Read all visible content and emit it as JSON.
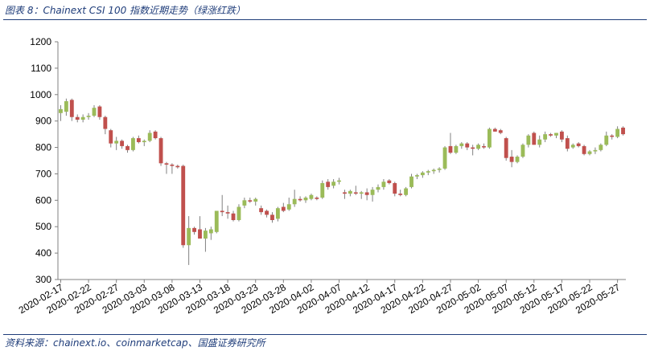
{
  "header": {
    "title": "图表 8：Chainext CSI 100 指数近期走势（绿涨红跌）"
  },
  "footer": {
    "source": "资料来源：chainext.io、coinmarketcap、国盛证券研究所"
  },
  "colors": {
    "up": "#9bbb59",
    "down": "#c0504d",
    "accent": "#1f3d7a",
    "wick": "#808080"
  },
  "chart_data": {
    "type": "candlestick",
    "ylim": [
      300,
      1200
    ],
    "yticks": [
      300,
      400,
      500,
      600,
      700,
      800,
      900,
      1000,
      1100,
      1200
    ],
    "xtick_labels": [
      "2020-02-17",
      "2020-02-22",
      "2020-02-27",
      "2020-03-03",
      "2020-03-08",
      "2020-03-13",
      "2020-03-18",
      "2020-03-23",
      "2020-03-28",
      "2020-04-02",
      "2020-04-07",
      "2020-04-12",
      "2020-04-17",
      "2020-04-22",
      "2020-04-27",
      "2020-05-02",
      "2020-05-07",
      "2020-05-12",
      "2020-05-17",
      "2020-05-22",
      "2020-05-27"
    ],
    "xtick_every": 5,
    "candles": [
      {
        "o": 930,
        "h": 960,
        "l": 900,
        "c": 945
      },
      {
        "o": 935,
        "h": 985,
        "l": 920,
        "c": 975
      },
      {
        "o": 980,
        "h": 985,
        "l": 900,
        "c": 915
      },
      {
        "o": 915,
        "h": 925,
        "l": 895,
        "c": 905
      },
      {
        "o": 905,
        "h": 925,
        "l": 895,
        "c": 915
      },
      {
        "o": 915,
        "h": 930,
        "l": 905,
        "c": 920
      },
      {
        "o": 920,
        "h": 960,
        "l": 915,
        "c": 950
      },
      {
        "o": 955,
        "h": 960,
        "l": 905,
        "c": 915
      },
      {
        "o": 915,
        "h": 920,
        "l": 850,
        "c": 870
      },
      {
        "o": 865,
        "h": 870,
        "l": 800,
        "c": 815
      },
      {
        "o": 815,
        "h": 840,
        "l": 790,
        "c": 825
      },
      {
        "o": 825,
        "h": 830,
        "l": 795,
        "c": 805
      },
      {
        "o": 805,
        "h": 810,
        "l": 780,
        "c": 790
      },
      {
        "o": 790,
        "h": 840,
        "l": 785,
        "c": 835
      },
      {
        "o": 835,
        "h": 845,
        "l": 815,
        "c": 820
      },
      {
        "o": 820,
        "h": 830,
        "l": 805,
        "c": 825
      },
      {
        "o": 825,
        "h": 865,
        "l": 820,
        "c": 855
      },
      {
        "o": 860,
        "h": 865,
        "l": 830,
        "c": 835
      },
      {
        "o": 835,
        "h": 840,
        "l": 730,
        "c": 740
      },
      {
        "o": 740,
        "h": 745,
        "l": 700,
        "c": 735
      },
      {
        "o": 735,
        "h": 740,
        "l": 700,
        "c": 730
      },
      {
        "o": 730,
        "h": 735,
        "l": 720,
        "c": 725
      },
      {
        "o": 730,
        "h": 735,
        "l": 420,
        "c": 430
      },
      {
        "o": 430,
        "h": 540,
        "l": 355,
        "c": 495
      },
      {
        "o": 495,
        "h": 500,
        "l": 470,
        "c": 480
      },
      {
        "o": 490,
        "h": 540,
        "l": 460,
        "c": 455
      },
      {
        "o": 455,
        "h": 495,
        "l": 405,
        "c": 485
      },
      {
        "o": 475,
        "h": 500,
        "l": 450,
        "c": 490
      },
      {
        "o": 480,
        "h": 560,
        "l": 475,
        "c": 560
      },
      {
        "o": 560,
        "h": 620,
        "l": 540,
        "c": 555
      },
      {
        "o": 555,
        "h": 580,
        "l": 530,
        "c": 550
      },
      {
        "o": 550,
        "h": 560,
        "l": 520,
        "c": 525
      },
      {
        "o": 525,
        "h": 585,
        "l": 520,
        "c": 575
      },
      {
        "o": 580,
        "h": 610,
        "l": 570,
        "c": 600
      },
      {
        "o": 600,
        "h": 610,
        "l": 590,
        "c": 595
      },
      {
        "o": 595,
        "h": 610,
        "l": 580,
        "c": 605
      },
      {
        "o": 570,
        "h": 580,
        "l": 545,
        "c": 555
      },
      {
        "o": 560,
        "h": 565,
        "l": 535,
        "c": 545
      },
      {
        "o": 545,
        "h": 555,
        "l": 515,
        "c": 525
      },
      {
        "o": 530,
        "h": 575,
        "l": 520,
        "c": 570
      },
      {
        "o": 575,
        "h": 590,
        "l": 555,
        "c": 560
      },
      {
        "o": 565,
        "h": 610,
        "l": 560,
        "c": 585
      },
      {
        "o": 585,
        "h": 640,
        "l": 575,
        "c": 605
      },
      {
        "o": 605,
        "h": 615,
        "l": 595,
        "c": 600
      },
      {
        "o": 600,
        "h": 615,
        "l": 590,
        "c": 610
      },
      {
        "o": 605,
        "h": 625,
        "l": 600,
        "c": 620
      },
      {
        "o": 610,
        "h": 615,
        "l": 600,
        "c": 605
      },
      {
        "o": 610,
        "h": 675,
        "l": 605,
        "c": 665
      },
      {
        "o": 670,
        "h": 680,
        "l": 640,
        "c": 650
      },
      {
        "o": 655,
        "h": 680,
        "l": 645,
        "c": 670
      },
      {
        "o": 670,
        "h": 685,
        "l": 660,
        "c": 675
      },
      {
        "o": 630,
        "h": 640,
        "l": 605,
        "c": 625
      },
      {
        "o": 625,
        "h": 640,
        "l": 615,
        "c": 635
      },
      {
        "o": 630,
        "h": 655,
        "l": 620,
        "c": 625
      },
      {
        "o": 625,
        "h": 635,
        "l": 605,
        "c": 630
      },
      {
        "o": 630,
        "h": 645,
        "l": 600,
        "c": 620
      },
      {
        "o": 620,
        "h": 650,
        "l": 595,
        "c": 640
      },
      {
        "o": 640,
        "h": 660,
        "l": 630,
        "c": 650
      },
      {
        "o": 650,
        "h": 680,
        "l": 640,
        "c": 670
      },
      {
        "o": 675,
        "h": 680,
        "l": 660,
        "c": 665
      },
      {
        "o": 665,
        "h": 670,
        "l": 615,
        "c": 625
      },
      {
        "o": 625,
        "h": 640,
        "l": 615,
        "c": 620
      },
      {
        "o": 620,
        "h": 650,
        "l": 615,
        "c": 645
      },
      {
        "o": 650,
        "h": 700,
        "l": 645,
        "c": 690
      },
      {
        "o": 690,
        "h": 700,
        "l": 680,
        "c": 695
      },
      {
        "o": 695,
        "h": 710,
        "l": 685,
        "c": 705
      },
      {
        "o": 705,
        "h": 715,
        "l": 695,
        "c": 710
      },
      {
        "o": 710,
        "h": 720,
        "l": 700,
        "c": 715
      },
      {
        "o": 715,
        "h": 725,
        "l": 705,
        "c": 720
      },
      {
        "o": 720,
        "h": 805,
        "l": 715,
        "c": 800
      },
      {
        "o": 805,
        "h": 855,
        "l": 775,
        "c": 780
      },
      {
        "o": 780,
        "h": 810,
        "l": 775,
        "c": 805
      },
      {
        "o": 805,
        "h": 820,
        "l": 795,
        "c": 815
      },
      {
        "o": 815,
        "h": 820,
        "l": 790,
        "c": 800
      },
      {
        "o": 800,
        "h": 810,
        "l": 770,
        "c": 795
      },
      {
        "o": 795,
        "h": 815,
        "l": 790,
        "c": 810
      },
      {
        "o": 805,
        "h": 815,
        "l": 795,
        "c": 800
      },
      {
        "o": 800,
        "h": 875,
        "l": 795,
        "c": 870
      },
      {
        "o": 870,
        "h": 875,
        "l": 860,
        "c": 860
      },
      {
        "o": 865,
        "h": 870,
        "l": 850,
        "c": 855
      },
      {
        "o": 835,
        "h": 840,
        "l": 750,
        "c": 760
      },
      {
        "o": 765,
        "h": 790,
        "l": 725,
        "c": 745
      },
      {
        "o": 745,
        "h": 770,
        "l": 740,
        "c": 765
      },
      {
        "o": 765,
        "h": 815,
        "l": 760,
        "c": 810
      },
      {
        "o": 810,
        "h": 850,
        "l": 800,
        "c": 845
      },
      {
        "o": 855,
        "h": 860,
        "l": 810,
        "c": 810
      },
      {
        "o": 810,
        "h": 845,
        "l": 800,
        "c": 830
      },
      {
        "o": 830,
        "h": 860,
        "l": 820,
        "c": 850
      },
      {
        "o": 850,
        "h": 855,
        "l": 840,
        "c": 845
      },
      {
        "o": 845,
        "h": 855,
        "l": 835,
        "c": 855
      },
      {
        "o": 860,
        "h": 865,
        "l": 820,
        "c": 830
      },
      {
        "o": 835,
        "h": 845,
        "l": 785,
        "c": 795
      },
      {
        "o": 800,
        "h": 815,
        "l": 795,
        "c": 810
      },
      {
        "o": 815,
        "h": 820,
        "l": 800,
        "c": 805
      },
      {
        "o": 805,
        "h": 810,
        "l": 770,
        "c": 775
      },
      {
        "o": 775,
        "h": 790,
        "l": 770,
        "c": 785
      },
      {
        "o": 785,
        "h": 800,
        "l": 775,
        "c": 790
      },
      {
        "o": 790,
        "h": 815,
        "l": 785,
        "c": 810
      },
      {
        "o": 810,
        "h": 860,
        "l": 805,
        "c": 845
      },
      {
        "o": 845,
        "h": 850,
        "l": 830,
        "c": 840
      },
      {
        "o": 840,
        "h": 880,
        "l": 835,
        "c": 870
      },
      {
        "o": 875,
        "h": 880,
        "l": 845,
        "c": 850
      }
    ]
  }
}
